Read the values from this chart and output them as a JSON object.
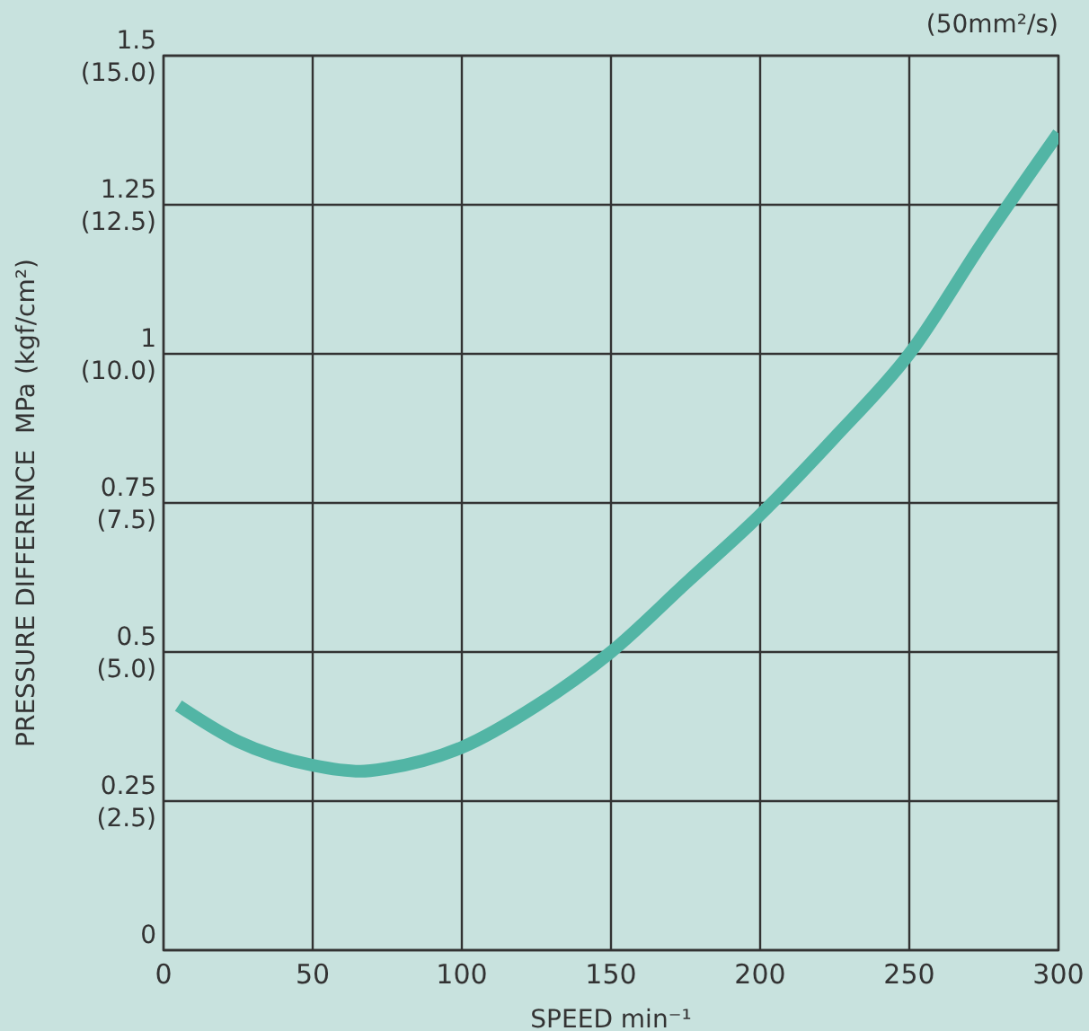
{
  "chart_data": {
    "type": "line",
    "xlabel": "SPEED  min⁻¹",
    "ylabel": "PRESSURE DIFFERENCE  MPa (kgf/cm²)",
    "annotations": [
      "(50mm²/s)"
    ],
    "x": [
      5,
      25,
      50,
      66,
      75,
      100,
      125,
      150,
      175,
      200,
      225,
      250,
      275,
      300
    ],
    "series": [
      {
        "color": "#52b5a5",
        "axis": "y2",
        "values": [
          0.41,
          0.35,
          0.31,
          0.3,
          0.305,
          0.34,
          0.41,
          0.5,
          0.615,
          0.73,
          0.86,
          1.0,
          1.19,
          1.37
        ]
      }
    ],
    "xlim": [
      0,
      300
    ],
    "xticks": [
      0,
      50,
      100,
      150,
      200,
      250,
      300
    ],
    "y2lim": [
      0,
      1.5
    ],
    "y2ticks": [
      0,
      0.25,
      0.5,
      0.75,
      1,
      1.25,
      1.5
    ],
    "ylim": [
      0,
      15
    ],
    "yticks": [
      {
        "value": 2.5,
        "label": "(2.5)"
      },
      {
        "value": 5,
        "label": "(5.0)"
      },
      {
        "value": 7.5,
        "label": "(7.5)"
      },
      {
        "value": 10,
        "label": "(10.0)"
      },
      {
        "value": 12.5,
        "label": "(12.5)"
      },
      {
        "value": 15,
        "label": "(15.0)"
      }
    ],
    "grid": true,
    "marker": "none",
    "line_style": "solid"
  }
}
